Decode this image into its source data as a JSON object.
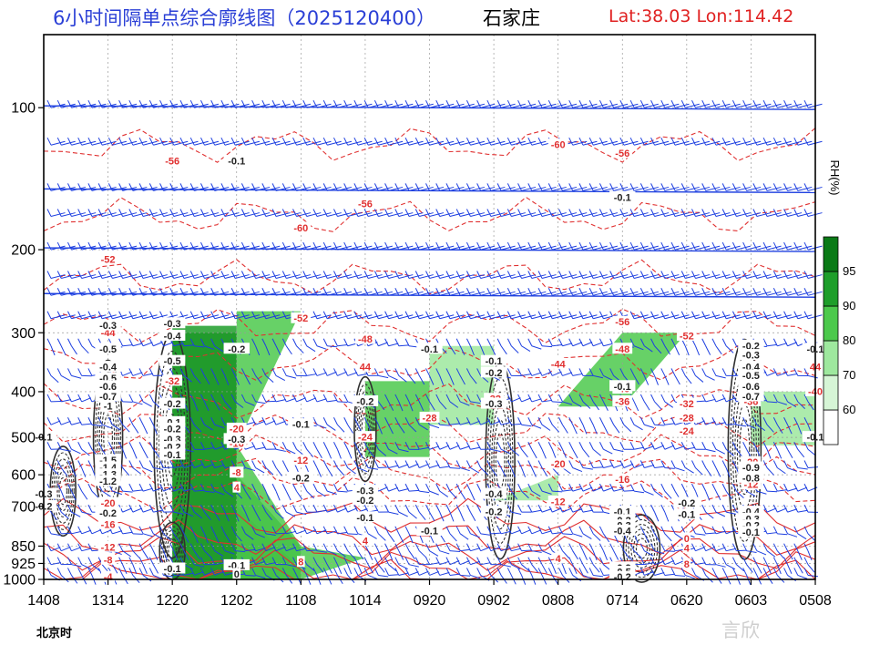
{
  "header": {
    "title": "6小时间隔单点综合廓线图（2025120400）",
    "city": "石家庄",
    "location": "Lat:38.03  Lon:114.42"
  },
  "x_unit_label": "北京时",
  "watermark": "言欣",
  "chart_data": {
    "type": "heatmap",
    "title": "6小时间隔单点综合廓线图（2025120400）",
    "x_ticks": [
      "1408",
      "1314",
      "1220",
      "1202",
      "1108",
      "1014",
      "0920",
      "0902",
      "0808",
      "0714",
      "0620",
      "0603",
      "0508"
    ],
    "y_ticks": [
      100,
      200,
      300,
      400,
      500,
      600,
      700,
      850,
      925,
      1000
    ],
    "y_range": [
      1000,
      70
    ],
    "legend": {
      "label": "RH(%)",
      "levels": [
        60,
        70,
        80,
        90,
        95
      ],
      "colors": [
        "#ffffff",
        "#d6f5d6",
        "#9ee89e",
        "#4cc94c",
        "#1e9e2a",
        "#0a7a16"
      ]
    },
    "colors": {
      "temperature": "#e03030",
      "vertical_velocity": "#303030",
      "wind": "#1d3fe0",
      "humidity": "#1e9e2a",
      "grid": "#9a9a9a"
    },
    "temperature_labels": [
      {
        "x": "1314",
        "p": 210,
        "text": "-52"
      },
      {
        "x": "1220",
        "p": 130,
        "text": "-56"
      },
      {
        "x": "1108",
        "p": 180,
        "text": "-60"
      },
      {
        "x": "1108",
        "p": 280,
        "text": "-52"
      },
      {
        "x": "1014",
        "p": 160,
        "text": "-56"
      },
      {
        "x": "0808",
        "p": 120,
        "text": "-60"
      },
      {
        "x": "0714",
        "p": 125,
        "text": "-56"
      },
      {
        "x": "0714",
        "p": 285,
        "text": "-56"
      },
      {
        "x": "0620",
        "p": 305,
        "text": "-52"
      },
      {
        "x": "1314",
        "p": 300,
        "text": "-44"
      },
      {
        "x": "1014",
        "p": 310,
        "text": "-48"
      },
      {
        "x": "0714",
        "p": 325,
        "text": "-48"
      },
      {
        "x": "0808",
        "p": 350,
        "text": "-44"
      },
      {
        "x": "0508",
        "p": 355,
        "text": "44"
      },
      {
        "x": "1014",
        "p": 355,
        "text": "44"
      },
      {
        "x": "1220",
        "p": 380,
        "text": "-32"
      },
      {
        "x": "0714",
        "p": 395,
        "text": "-40"
      },
      {
        "x": "0902",
        "p": 415,
        "text": "-32"
      },
      {
        "x": "0508",
        "p": 400,
        "text": "-40"
      },
      {
        "x": "0714",
        "p": 420,
        "text": "-36"
      },
      {
        "x": "0603",
        "p": 420,
        "text": "-36"
      },
      {
        "x": "0620",
        "p": 425,
        "text": "-32"
      },
      {
        "x": "0920",
        "p": 455,
        "text": "-28"
      },
      {
        "x": "0620",
        "p": 455,
        "text": "-28"
      },
      {
        "x": "1202",
        "p": 480,
        "text": "-20"
      },
      {
        "x": "0620",
        "p": 485,
        "text": "-24"
      },
      {
        "x": "1014",
        "p": 500,
        "text": "-24"
      },
      {
        "x": "1202",
        "p": 515,
        "text": "-16"
      },
      {
        "x": "1108",
        "p": 560,
        "text": "-12"
      },
      {
        "x": "0808",
        "p": 570,
        "text": "-20"
      },
      {
        "x": "0603",
        "p": 565,
        "text": "-20"
      },
      {
        "x": "1202",
        "p": 595,
        "text": "-8"
      },
      {
        "x": "0714",
        "p": 615,
        "text": "-16"
      },
      {
        "x": "0603",
        "p": 595,
        "text": "-16"
      },
      {
        "x": "0603",
        "p": 630,
        "text": "-12"
      },
      {
        "x": "1202",
        "p": 640,
        "text": "4"
      },
      {
        "x": "1314",
        "p": 690,
        "text": "-20"
      },
      {
        "x": "0808",
        "p": 685,
        "text": "-12"
      },
      {
        "x": "1314",
        "p": 765,
        "text": "-16"
      },
      {
        "x": "1314",
        "p": 855,
        "text": "-12"
      },
      {
        "x": "1014",
        "p": 830,
        "text": "4"
      },
      {
        "x": "0620",
        "p": 820,
        "text": "0"
      },
      {
        "x": "0620",
        "p": 860,
        "text": "4"
      },
      {
        "x": "1314",
        "p": 910,
        "text": "-8"
      },
      {
        "x": "0808",
        "p": 905,
        "text": "4"
      },
      {
        "x": "0620",
        "p": 930,
        "text": "8"
      },
      {
        "x": "1314",
        "p": 990,
        "text": "-4"
      },
      {
        "x": "1108",
        "p": 920,
        "text": "8"
      }
    ],
    "vertical_velocity_labels": [
      {
        "x": "1202",
        "p": 130,
        "text": "-0.1"
      },
      {
        "x": "1314",
        "p": 290,
        "text": "-0.3"
      },
      {
        "x": "1220",
        "p": 287,
        "text": "-0.3"
      },
      {
        "x": "1220",
        "p": 305,
        "text": "-0.4"
      },
      {
        "x": "1202",
        "p": 325,
        "text": "-0.2"
      },
      {
        "x": "1220",
        "p": 345,
        "text": "-0.5"
      },
      {
        "x": "1314",
        "p": 325,
        "text": "-0.5"
      },
      {
        "x": "1314",
        "p": 355,
        "text": "-0.4"
      },
      {
        "x": "1314",
        "p": 375,
        "text": "-0.5"
      },
      {
        "x": "1314",
        "p": 390,
        "text": "-0.6"
      },
      {
        "x": "1314",
        "p": 410,
        "text": "-0.7"
      },
      {
        "x": "1314",
        "p": 430,
        "text": "-1"
      },
      {
        "x": "1220",
        "p": 425,
        "text": "-0.2"
      },
      {
        "x": "1220",
        "p": 465,
        "text": "-0.1"
      },
      {
        "x": "1220",
        "p": 480,
        "text": "-0.2"
      },
      {
        "x": "1108",
        "p": 470,
        "text": "-0.1"
      },
      {
        "x": "1408",
        "p": 500,
        "text": "-0.1"
      },
      {
        "x": "1220",
        "p": 505,
        "text": "-0.3"
      },
      {
        "x": "1202",
        "p": 505,
        "text": "-0.3"
      },
      {
        "x": "1220",
        "p": 525,
        "text": "-0.2"
      },
      {
        "x": "1220",
        "p": 545,
        "text": "-0.1"
      },
      {
        "x": "1314",
        "p": 560,
        "text": "-1.5"
      },
      {
        "x": "1314",
        "p": 580,
        "text": "-1.4"
      },
      {
        "x": "1314",
        "p": 600,
        "text": "-1.3"
      },
      {
        "x": "1314",
        "p": 620,
        "text": "-1.2"
      },
      {
        "x": "1108",
        "p": 610,
        "text": "-0.2"
      },
      {
        "x": "1014",
        "p": 650,
        "text": "-0.3"
      },
      {
        "x": "1014",
        "p": 680,
        "text": "-0.2"
      },
      {
        "x": "1408",
        "p": 660,
        "text": "-0.3"
      },
      {
        "x": "1408",
        "p": 700,
        "text": "-0.2"
      },
      {
        "x": "0902",
        "p": 660,
        "text": "-0.4"
      },
      {
        "x": "0902",
        "p": 720,
        "text": "-0.2"
      },
      {
        "x": "1314",
        "p": 725,
        "text": "-0.2"
      },
      {
        "x": "1014",
        "p": 740,
        "text": "-0.1"
      },
      {
        "x": "0920",
        "p": 790,
        "text": "-0.1"
      },
      {
        "x": "1014",
        "p": 420,
        "text": "-0.2"
      },
      {
        "x": "0920",
        "p": 325,
        "text": "-0.1"
      },
      {
        "x": "0902",
        "p": 345,
        "text": "-0.1"
      },
      {
        "x": "0902",
        "p": 365,
        "text": "-0.2"
      },
      {
        "x": "0902",
        "p": 425,
        "text": "-0.3"
      },
      {
        "x": "0714",
        "p": 155,
        "text": "-0.1"
      },
      {
        "x": "0714",
        "p": 390,
        "text": "-0.1"
      },
      {
        "x": "0603",
        "p": 320,
        "text": "-0.2"
      },
      {
        "x": "0603",
        "p": 335,
        "text": "-0.3"
      },
      {
        "x": "0603",
        "p": 355,
        "text": "-0.4"
      },
      {
        "x": "0603",
        "p": 370,
        "text": "-0.5"
      },
      {
        "x": "0603",
        "p": 390,
        "text": "-0.6"
      },
      {
        "x": "0603",
        "p": 410,
        "text": "-0.7"
      },
      {
        "x": "0508",
        "p": 325,
        "text": "-0.1"
      },
      {
        "x": "0508",
        "p": 500,
        "text": "-0.1"
      },
      {
        "x": "0603",
        "p": 580,
        "text": "-0.9"
      },
      {
        "x": "0603",
        "p": 610,
        "text": "-0.8"
      },
      {
        "x": "0620",
        "p": 690,
        "text": "-0.2"
      },
      {
        "x": "0620",
        "p": 730,
        "text": "-0.1"
      },
      {
        "x": "0603",
        "p": 720,
        "text": "-0.4"
      },
      {
        "x": "0603",
        "p": 745,
        "text": "-0.3"
      },
      {
        "x": "0603",
        "p": 770,
        "text": "-0.2"
      },
      {
        "x": "0603",
        "p": 795,
        "text": "-0.1"
      },
      {
        "x": "0714",
        "p": 720,
        "text": "-0.1"
      },
      {
        "x": "0714",
        "p": 750,
        "text": "-0.2"
      },
      {
        "x": "0714",
        "p": 770,
        "text": "-0.3"
      },
      {
        "x": "0714",
        "p": 790,
        "text": "-0.4"
      },
      {
        "x": "0714",
        "p": 945,
        "text": "-0.9"
      },
      {
        "x": "0714",
        "p": 965,
        "text": "-0.5"
      },
      {
        "x": "0714",
        "p": 990,
        "text": "-0.2"
      },
      {
        "x": "1220",
        "p": 950,
        "text": "-0.1"
      },
      {
        "x": "1202",
        "p": 935,
        "text": "-0.1"
      },
      {
        "x": "1202",
        "p": 975,
        "text": "0"
      }
    ],
    "humidity_regions": [
      {
        "level": 95,
        "points": [
          [
            "1220",
            300
          ],
          [
            "1202",
            300
          ],
          [
            "1202",
            700
          ],
          [
            "1108",
            950
          ],
          [
            "1108",
            1000
          ],
          [
            "1220",
            1000
          ],
          [
            "1220",
            700
          ]
        ]
      },
      {
        "level": 90,
        "points": [
          [
            "1220",
            290
          ],
          [
            "1202",
            290
          ],
          [
            "1202",
            600
          ],
          [
            "1108",
            850
          ],
          [
            "1108",
            1000
          ],
          [
            "1220",
            1000
          ]
        ]
      },
      {
        "level": 80,
        "points": [
          [
            "1202",
            270
          ],
          [
            "1108",
            270
          ],
          [
            "1202",
            520
          ],
          [
            "1108",
            850
          ],
          [
            "1014",
            900
          ],
          [
            "1108",
            1000
          ],
          [
            "1202",
            1000
          ]
        ]
      },
      {
        "level": 80,
        "points": [
          [
            "1014",
            380
          ],
          [
            "0920",
            380
          ],
          [
            "0920",
            550
          ],
          [
            "1014",
            550
          ]
        ]
      },
      {
        "level": 80,
        "points": [
          [
            "0714",
            300
          ],
          [
            "0620",
            300
          ],
          [
            "0714",
            430
          ],
          [
            "0808",
            430
          ]
        ]
      },
      {
        "level": 70,
        "points": [
          [
            "0920",
            320
          ],
          [
            "0902",
            320
          ],
          [
            "0902",
            470
          ],
          [
            "0920",
            470
          ]
        ]
      },
      {
        "level": 70,
        "points": [
          [
            "0508",
            400
          ],
          [
            "0508",
            520
          ],
          [
            "0603",
            520
          ],
          [
            "0603",
            400
          ]
        ]
      },
      {
        "level": 70,
        "points": [
          [
            "0808",
            600
          ],
          [
            "0808",
            680
          ],
          [
            "0902",
            680
          ]
        ]
      }
    ],
    "wind_shear_levels": [
      100,
      150,
      200,
      250
    ]
  }
}
